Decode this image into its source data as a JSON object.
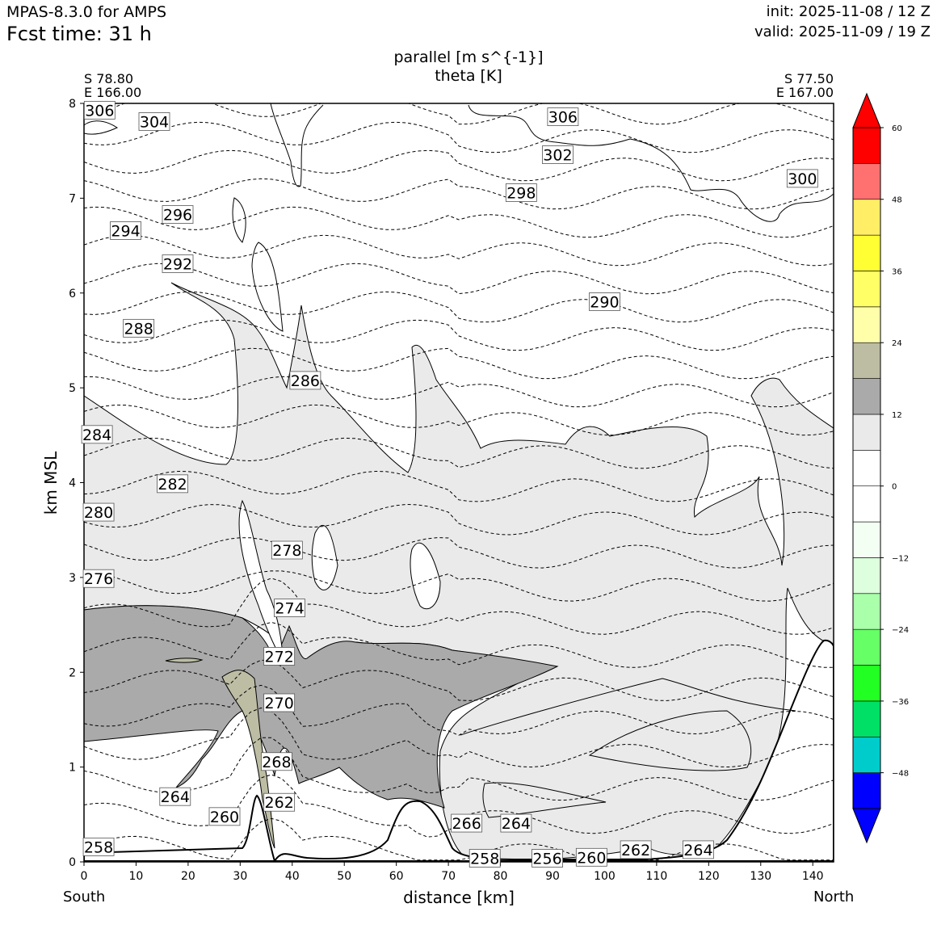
{
  "header": {
    "model": "MPAS-8.3.0 for AMPS",
    "fcst_time": "Fcst time:   31 h",
    "init": "init: 2025-11-08 / 12 Z",
    "valid": "valid: 2025-11-09 / 19 Z"
  },
  "cross_section": {
    "left_lat": "S 78.80",
    "left_lon": "E 166.00",
    "right_lat": "S 77.50",
    "right_lon": "E 167.00",
    "left_end": "South",
    "right_end": "North"
  },
  "chart_data": {
    "type": "heatmap",
    "title": "parallel [m s^{-1}]",
    "subtitle": "theta [K]",
    "xlabel": "distance [km]",
    "ylabel": "km MSL",
    "xlim": [
      0,
      144
    ],
    "ylim": [
      0,
      8
    ],
    "xticks": [
      0,
      10,
      20,
      30,
      40,
      50,
      60,
      70,
      80,
      90,
      100,
      110,
      120,
      130,
      140
    ],
    "yticks": [
      0,
      1,
      2,
      3,
      4,
      5,
      6,
      7,
      8
    ],
    "grid": false,
    "colorbar": {
      "levels": [
        -54,
        -48,
        -42,
        -36,
        -30,
        -24,
        -18,
        -12,
        -6,
        0,
        6,
        12,
        18,
        24,
        30,
        36,
        42,
        48,
        54,
        60
      ],
      "tick_values": [
        -48,
        -36,
        -24,
        -12,
        0,
        12,
        24,
        36,
        48,
        60
      ],
      "tick_labels": [
        "−48",
        "−36",
        "−24",
        "−12",
        "0",
        "12",
        "24",
        "36",
        "48",
        "60"
      ],
      "colors": [
        "#0000ff",
        "#00cccc",
        "#00e066",
        "#22ff22",
        "#66ff66",
        "#aaffaa",
        "#ddffdd",
        "#f4fff4",
        "#ffffff",
        "#ffffff",
        "#eaeaea",
        "#aaaaaa",
        "#bdbda4",
        "#ffffaa",
        "#ffff66",
        "#ffff33",
        "#ffee66",
        "#ff7070",
        "#ff0000"
      ],
      "extend": "both"
    },
    "theta_isentropes_K": [
      258,
      260,
      262,
      264,
      266,
      268,
      270,
      272,
      274,
      276,
      278,
      280,
      282,
      284,
      286,
      288,
      290,
      292,
      294,
      296,
      298,
      300,
      302,
      304,
      306
    ],
    "theta_labels": [
      {
        "text": "306",
        "x": 3,
        "y": 7.92
      },
      {
        "text": "304",
        "x": 13.5,
        "y": 7.8
      },
      {
        "text": "306",
        "x": 92,
        "y": 7.85
      },
      {
        "text": "302",
        "x": 91,
        "y": 7.45
      },
      {
        "text": "300",
        "x": 138,
        "y": 7.2
      },
      {
        "text": "298",
        "x": 84,
        "y": 7.05
      },
      {
        "text": "296",
        "x": 18,
        "y": 6.82
      },
      {
        "text": "294",
        "x": 8,
        "y": 6.65
      },
      {
        "text": "292",
        "x": 18,
        "y": 6.3
      },
      {
        "text": "290",
        "x": 100,
        "y": 5.9
      },
      {
        "text": "288",
        "x": 10.5,
        "y": 5.62
      },
      {
        "text": "286",
        "x": 42.5,
        "y": 5.07
      },
      {
        "text": "284",
        "x": 2.5,
        "y": 4.5
      },
      {
        "text": "282",
        "x": 17,
        "y": 3.98
      },
      {
        "text": "280",
        "x": 2.8,
        "y": 3.68
      },
      {
        "text": "278",
        "x": 39,
        "y": 3.28
      },
      {
        "text": "276",
        "x": 2.8,
        "y": 2.98
      },
      {
        "text": "274",
        "x": 39.5,
        "y": 2.67
      },
      {
        "text": "272",
        "x": 37.5,
        "y": 2.16
      },
      {
        "text": "270",
        "x": 37.5,
        "y": 1.67
      },
      {
        "text": "268",
        "x": 37,
        "y": 1.05
      },
      {
        "text": "264",
        "x": 17.5,
        "y": 0.68
      },
      {
        "text": "262",
        "x": 37.5,
        "y": 0.62
      },
      {
        "text": "260",
        "x": 27,
        "y": 0.47
      },
      {
        "text": "266",
        "x": 73.5,
        "y": 0.4
      },
      {
        "text": "264",
        "x": 83,
        "y": 0.4
      },
      {
        "text": "258",
        "x": 2.8,
        "y": 0.15
      },
      {
        "text": "258",
        "x": 77,
        "y": 0.03
      },
      {
        "text": "256",
        "x": 89,
        "y": 0.03
      },
      {
        "text": "260",
        "x": 97.5,
        "y": 0.04
      },
      {
        "text": "262",
        "x": 106,
        "y": 0.12
      },
      {
        "text": "264",
        "x": 118,
        "y": 0.12
      }
    ]
  }
}
